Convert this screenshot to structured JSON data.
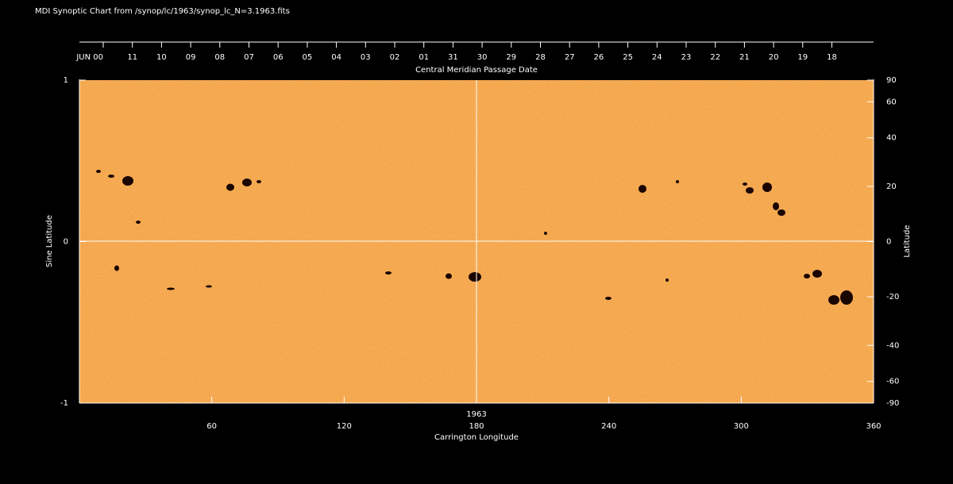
{
  "chart_data": {
    "type": "synoptic-map",
    "title": "MDI Synoptic Chart from /synop/lc/1963/synop_lc_N=3.1963.fits",
    "xlabel": "Carrington Longitude",
    "ylabel": "Sine Latitude",
    "y2label": "Latitude",
    "toplabel": "Central Meridian Passage Date",
    "top_categories": [
      "JUN 00",
      "11",
      "10",
      "09",
      "08",
      "07",
      "06",
      "05",
      "04",
      "03",
      "02",
      "01",
      "31",
      "30",
      "29",
      "28",
      "27",
      "26",
      "25",
      "24",
      "23",
      "22",
      "21",
      "20",
      "19",
      "18"
    ],
    "annotation": "1963",
    "xlim": [
      0,
      360
    ],
    "xticks": [
      60,
      120,
      180,
      240,
      300,
      360
    ],
    "ylim": [
      -1,
      1
    ],
    "yticks": [
      -1,
      0,
      1
    ],
    "y2lim": [
      -90,
      90
    ],
    "y2ticks": [
      90,
      60,
      40,
      20,
      0,
      -20,
      -40,
      -60,
      -90
    ],
    "y2scale": "sine"
  }
}
